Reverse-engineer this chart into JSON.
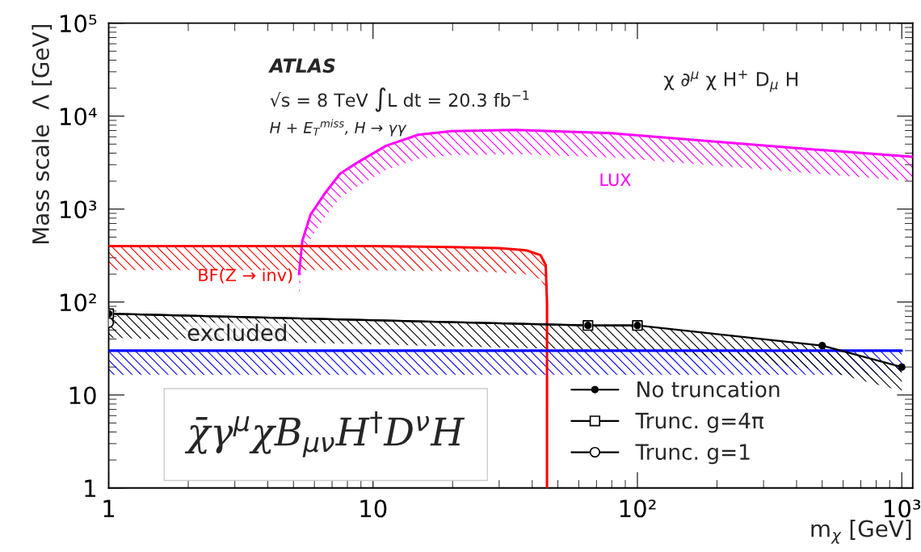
{
  "chart_data": {
    "type": "line",
    "xlabel": "m$_{χ}$ [GeV]",
    "ylabel": "Mass scale  Λ [GeV]",
    "log": "xy",
    "xlim": [
      1,
      1100
    ],
    "ylim": [
      1,
      100000
    ],
    "xticks": [
      1,
      10,
      {
        "value": 100,
        "label": "10²"
      },
      {
        "value": 1000,
        "label": "10³"
      }
    ],
    "yticks": [
      1,
      10,
      {
        "value": 100,
        "label": "10²"
      },
      {
        "value": 1000,
        "label": "10³"
      },
      {
        "value": 10000,
        "label": "10⁴"
      },
      {
        "value": 100000,
        "label": "10⁵"
      }
    ],
    "grid": false,
    "legend": "bottom right",
    "series": [
      {
        "color": "#ff00ff",
        "line_style": "solid",
        "marker": "none",
        "x": [
          5.25,
          5.4,
          5.8,
          6.6,
          7.5,
          8.7,
          11.2,
          14.8,
          19.8,
          34.6,
          80,
          202,
          457,
          1100
        ],
        "values": [
          200,
          455,
          870,
          1500,
          2400,
          3150,
          4800,
          6300,
          6900,
          7100,
          6550,
          5300,
          4400,
          3650
        ]
      },
      {
        "color": "#ff0000",
        "line_style": "solid",
        "marker": "none",
        "x": [
          1,
          10,
          20,
          30,
          38,
          43,
          45,
          45.5,
          45.5
        ],
        "values": [
          400,
          400,
          390,
          380,
          360,
          320,
          250,
          100,
          1
        ]
      },
      {
        "color": "#0000ff",
        "line_style": "solid",
        "marker": "none",
        "x": [
          1,
          1000
        ],
        "values": [
          30,
          30
        ]
      },
      {
        "name": "No truncation",
        "color": "#000000",
        "line_style": "solid",
        "marker": "circle",
        "x": [
          1,
          65,
          100,
          500,
          1000
        ],
        "values": [
          75,
          56,
          56,
          34,
          20
        ]
      },
      {
        "name": "Trunc. g=4π",
        "color": "#000000",
        "line_style": "solid",
        "marker": "square",
        "x": [
          1,
          65,
          100
        ],
        "values": [
          75,
          56,
          56
        ]
      },
      {
        "name": "Trunc. g=1",
        "color": "#000000",
        "line_style": "solid",
        "marker": "circle",
        "x": [
          1
        ],
        "values": [
          60
        ]
      }
    ],
    "annotations": [
      "ATLAS",
      "√s = 8 TeV ∫L dt = 20.3 fb$^{−1}$",
      "H + E$_{T}$$^{miss}$, H → γγ",
      "χ ∂$^{μ}$ χ H$^{+}$ D$_{μ}$ H",
      "LUX",
      "BF(Z → inv)",
      "excluded",
      "χ̄γ$^{μ}$χB$_{μν}$H$^{†}$D$^{ν}$H"
    ]
  }
}
